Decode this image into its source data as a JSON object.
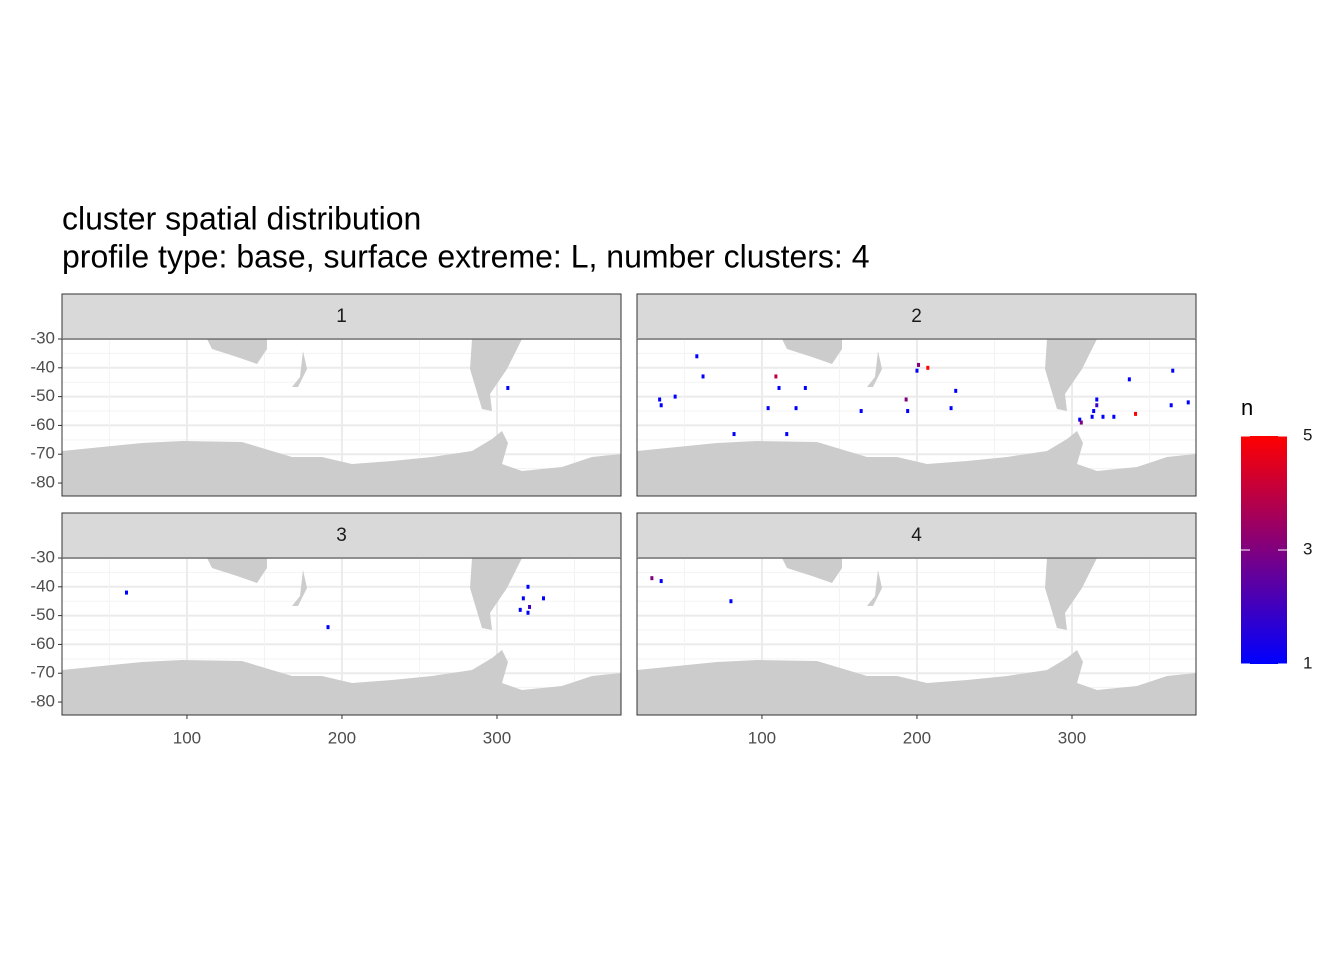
{
  "chart_data": {
    "type": "tile",
    "title": "cluster spatial distribution",
    "subtitle": "profile type: base, surface extreme: L, number clusters: 4",
    "xlim": [
      19.4,
      380
    ],
    "ylim": [
      -84.5,
      -30
    ],
    "xticks": [
      100,
      200,
      300
    ],
    "yticks": [
      -30,
      -40,
      -50,
      -60,
      -70,
      -80
    ],
    "grid": true,
    "legend": {
      "title": "n",
      "lim": [
        1,
        5
      ],
      "ticks": [
        1,
        3,
        5
      ],
      "colors": [
        "#0000ff",
        "#ff0000"
      ],
      "position": "right"
    },
    "land_color": "#cccccc",
    "facets": [
      {
        "label": "1",
        "x": [
          307
        ],
        "y": [
          -47
        ],
        "values": [
          1
        ]
      },
      {
        "label": "2",
        "x": [
          58,
          62,
          34,
          35,
          44,
          109,
          111,
          128,
          104,
          122,
          82,
          116,
          164,
          193,
          194,
          201,
          200,
          207,
          225,
          222,
          337,
          316,
          314,
          313,
          320,
          305,
          306,
          327,
          341,
          365,
          364,
          375,
          316
        ],
        "y": [
          -36,
          -43,
          -51,
          -53,
          -50,
          -43,
          -47,
          -47,
          -54,
          -54,
          -63,
          -63,
          -55,
          -51,
          -55,
          -39,
          -41,
          -40,
          -48,
          -54,
          -44,
          -51,
          -55,
          -57,
          -57,
          -58,
          -59,
          -57,
          -56,
          -41,
          -53,
          -52,
          -53
        ],
        "values": [
          1,
          1,
          1,
          1,
          1,
          4,
          1,
          1,
          1,
          1,
          1,
          1,
          1,
          3,
          1,
          3,
          1,
          5,
          1,
          1,
          1,
          1,
          1,
          1,
          1,
          1,
          3,
          1,
          5,
          1,
          1,
          1,
          2
        ]
      },
      {
        "label": "3",
        "x": [
          61,
          191,
          320,
          317,
          315,
          320,
          321,
          330
        ],
        "y": [
          -42,
          -54,
          -40,
          -44,
          -48,
          -49,
          -47,
          -44
        ],
        "values": [
          1,
          1,
          1,
          1,
          1,
          1,
          2,
          1
        ]
      },
      {
        "label": "4",
        "x": [
          29,
          35,
          80
        ],
        "y": [
          -37,
          -38,
          -45
        ],
        "values": [
          3,
          1,
          1
        ]
      }
    ]
  }
}
